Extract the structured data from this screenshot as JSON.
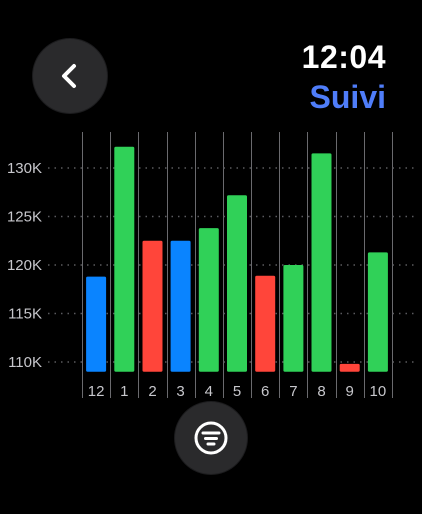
{
  "header": {
    "time": "12:04",
    "title": "Suivi",
    "title_color": "#4f7df9"
  },
  "back_button": {
    "icon": "chevron-left-icon"
  },
  "filter_button": {
    "icon": "filter-lines-icon"
  },
  "colors": {
    "blue": "#0a84ff",
    "green": "#30d158",
    "red": "#ff453a",
    "grid": "#5a5a5e",
    "divider": "#6a6a6e",
    "label": "#c7c7cc"
  },
  "chart_data": {
    "type": "bar",
    "categories": [
      "12",
      "1",
      "2",
      "3",
      "4",
      "5",
      "6",
      "7",
      "8",
      "9",
      "10"
    ],
    "values": [
      118800,
      132200,
      122500,
      122500,
      123800,
      127200,
      118900,
      120000,
      131500,
      109800,
      121300
    ],
    "baseline": 109000,
    "bar_colors": [
      "blue",
      "green",
      "red",
      "blue",
      "green",
      "green",
      "red",
      "green",
      "green",
      "red",
      "green"
    ],
    "ylim": [
      109000,
      134000
    ],
    "yticks": [
      110000,
      115000,
      120000,
      125000,
      130000
    ],
    "ytick_labels": [
      "110K",
      "115K",
      "120K",
      "125K",
      "130K"
    ],
    "grid": "horizontal-dotted",
    "title": "",
    "xlabel": "",
    "ylabel": ""
  }
}
